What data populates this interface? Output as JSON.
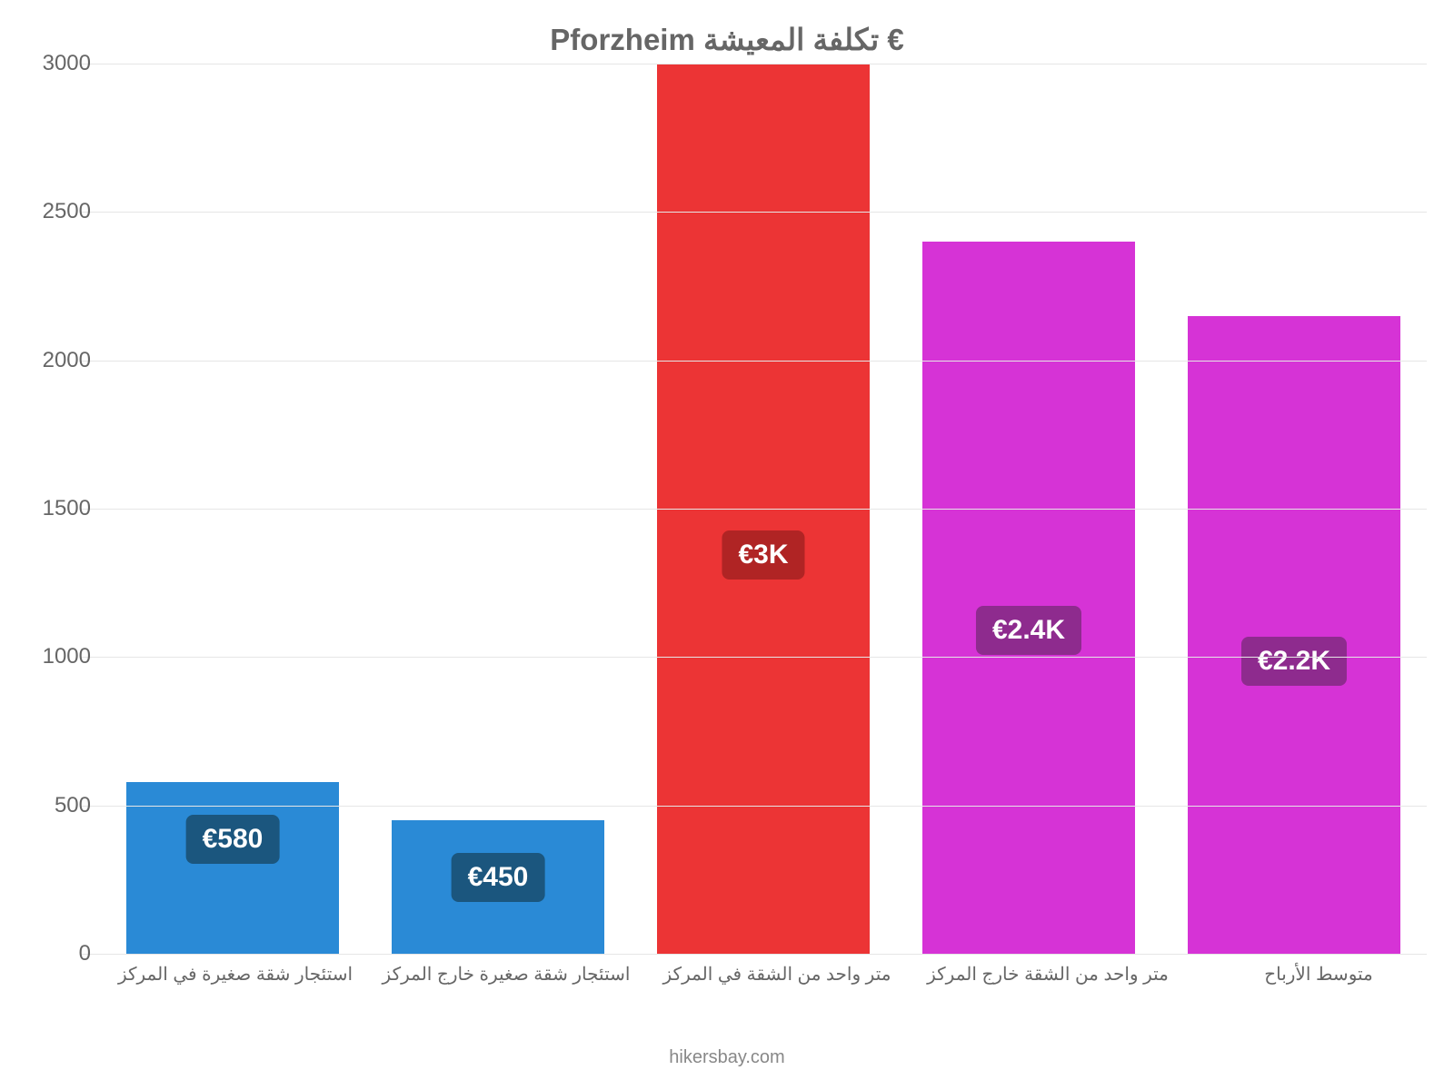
{
  "chart": {
    "type": "bar",
    "title": "€ تكلفة المعيشة Pforzheim",
    "title_fontsize": 33,
    "title_color": "#666666",
    "background_color": "#ffffff",
    "grid_color": "#e6e6e6",
    "axis_label_color": "#666666",
    "tick_fontsize": 24,
    "xlabel_fontsize": 20,
    "attribution": "hikersbay.com",
    "attribution_color": "#888888",
    "ylim": [
      0,
      3000
    ],
    "ytick_step": 500,
    "yticks": [
      0,
      500,
      1000,
      1500,
      2000,
      2500,
      3000
    ],
    "bar_width_pct": 80,
    "categories": [
      "استئجار شقة صغيرة في المركز",
      "استئجار شقة صغيرة خارج المركز",
      "متر واحد من الشقة في المركز",
      "متر واحد من الشقة خارج المركز",
      "متوسط الأرباح"
    ],
    "values": [
      580,
      450,
      3000,
      2400,
      2150
    ],
    "value_labels": [
      "€580",
      "€450",
      "€3K",
      "€2.4K",
      "€2.2K"
    ],
    "bar_colors": [
      "#2a8ad6",
      "#2a8ad6",
      "#ec3435",
      "#d633d6",
      "#d633d6"
    ],
    "badge_colors": [
      "#1b567e",
      "#1b567e",
      "#b02424",
      "#8e2b8e",
      "#8e2b8e"
    ],
    "badge_fontsize": 30,
    "badge_text_color": "#ffffff"
  }
}
